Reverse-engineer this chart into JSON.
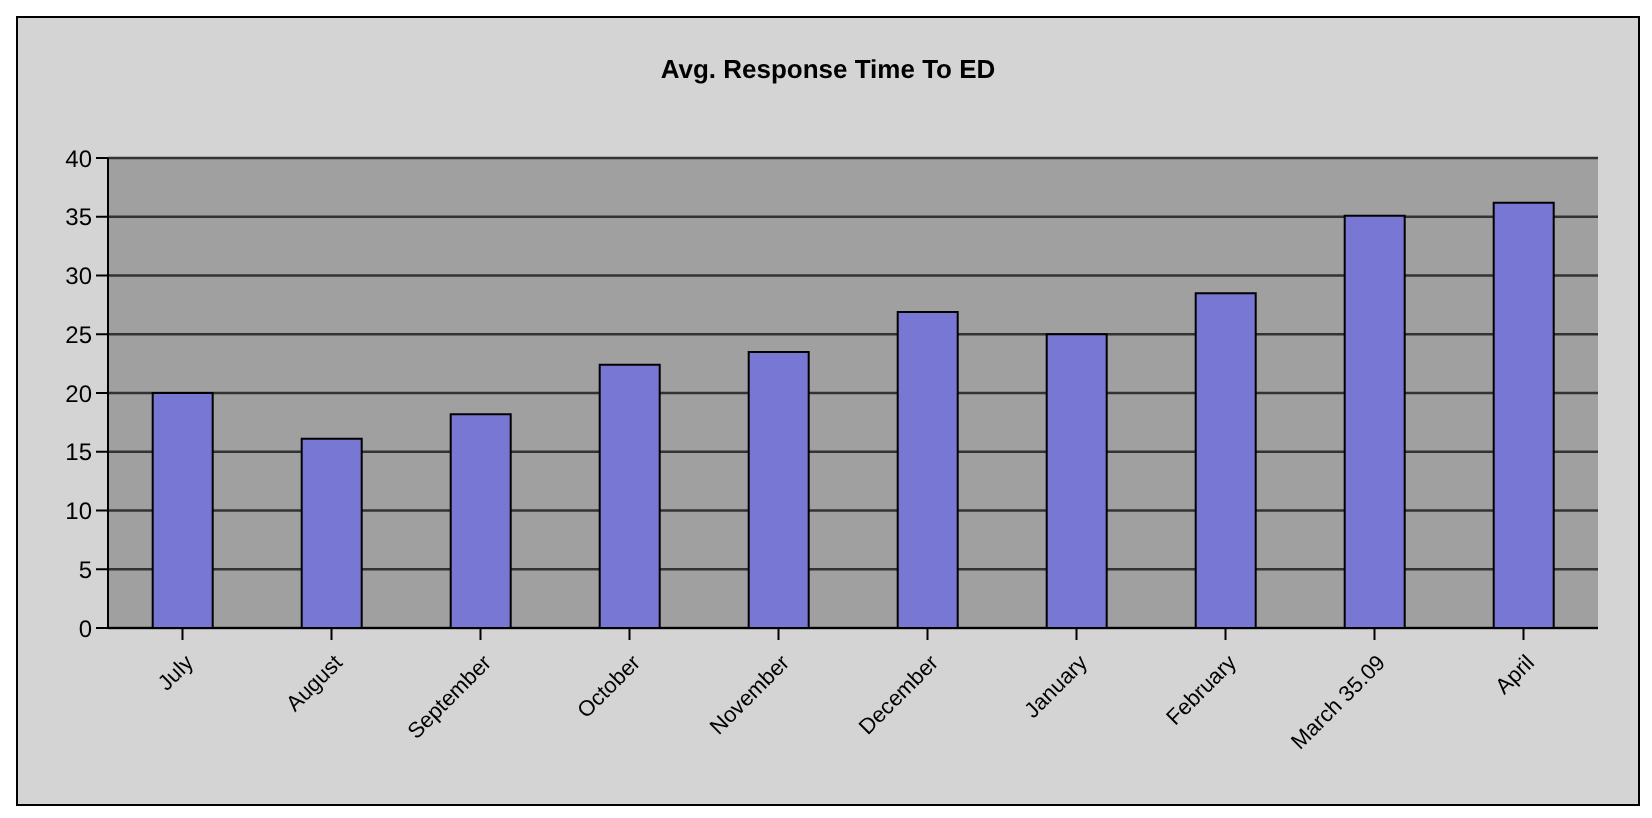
{
  "chart_data": {
    "type": "bar",
    "title": "Avg. Response Time To ED",
    "categories": [
      "July",
      "August",
      "September",
      "October",
      "November",
      "December",
      "January",
      "February",
      "March 35.09",
      "April"
    ],
    "values": [
      20,
      16.1,
      18.2,
      22.4,
      23.5,
      26.9,
      25,
      28.5,
      35.09,
      36.2
    ],
    "color": "#7878d4",
    "ylim": [
      0,
      40
    ],
    "yticks": [
      0,
      5,
      10,
      15,
      20,
      25,
      30,
      35,
      40
    ],
    "grid": "y",
    "legend": false
  }
}
